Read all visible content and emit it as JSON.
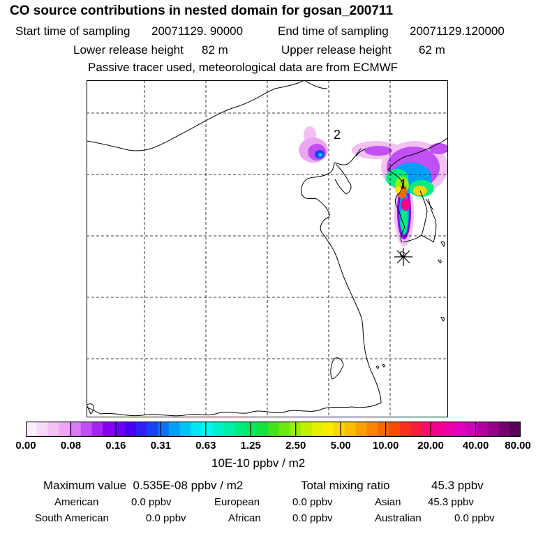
{
  "header": {
    "title": "CO  source contributions in nested domain for gosan_200711",
    "start_label": "Start time of sampling",
    "start_value": "20071129. 90000",
    "end_label": "End time of sampling",
    "end_value": "20071129.120000",
    "lower_label": "Lower release height",
    "lower_value": "82 m",
    "upper_label": "Upper release height",
    "upper_value": "62 m",
    "note": "Passive tracer used, meteorological data are from ECMWF"
  },
  "map": {
    "labels": {
      "region_1": "1",
      "region_2": "2"
    },
    "receptor_marker": "asterisk-icon"
  },
  "colorbar": {
    "tick_labels": [
      "0.00",
      "0.08",
      "0.16",
      "0.31",
      "0.63",
      "1.25",
      "2.50",
      "5.00",
      "10.00",
      "20.00",
      "40.00",
      "80.00"
    ],
    "units": "10E-10 ppbv / m2",
    "colors": [
      "#fbeefb",
      "#f7d8f7",
      "#f2c0f2",
      "#eda6f3",
      "#d77cf3",
      "#c050f3",
      "#a624f2",
      "#8800f2",
      "#6a00f2",
      "#4c00f2",
      "#3020f3",
      "#1842f3",
      "#0c72f4",
      "#00a0f7",
      "#00c4f7",
      "#00e6f5",
      "#00f7f0",
      "#00f0cc",
      "#00eea6",
      "#00ec80",
      "#00e860",
      "#10e240",
      "#40e220",
      "#6ae810",
      "#98ee00",
      "#c0f000",
      "#e4f000",
      "#f8ec00",
      "#f8d400",
      "#f8bc00",
      "#f8a000",
      "#f88400",
      "#f86800",
      "#f84c00",
      "#f83020",
      "#f81c3c",
      "#f80e6c",
      "#f40090",
      "#ec00a8",
      "#e200c0",
      "#cc00b4",
      "#b0009e",
      "#940088",
      "#760070",
      "#58005a"
    ]
  },
  "summary": {
    "max_label": "Maximum value",
    "max_value": "0.535E-08 ppbv / m2",
    "total_label": "Total mixing ratio",
    "total_value": "45.3 ppbv",
    "regions": [
      {
        "name": "American",
        "value": "0.0 ppbv"
      },
      {
        "name": "European",
        "value": "0.0 ppbv"
      },
      {
        "name": "Asian",
        "value": "45.3 ppbv"
      },
      {
        "name": "South American",
        "value": "0.0 ppbv"
      },
      {
        "name": "African",
        "value": "0.0 ppbv"
      },
      {
        "name": "Australian",
        "value": "0.0 ppbv"
      }
    ]
  }
}
